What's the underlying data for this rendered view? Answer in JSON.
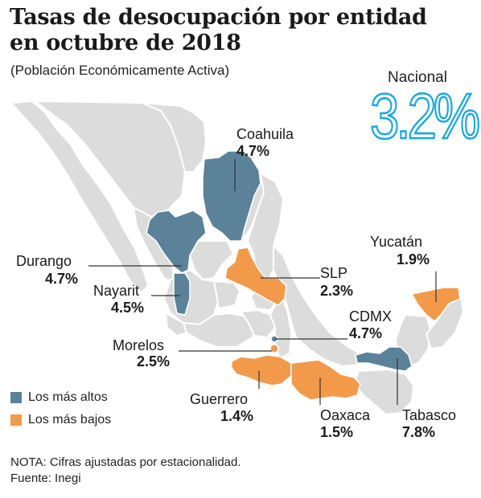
{
  "title": "Tasas de desocupación por entidad en octubre de 2018",
  "subtitle": "(Población Económicamente Activa)",
  "national": {
    "label": "Nacional",
    "value": "3.2%"
  },
  "colors": {
    "high": "#5b8299",
    "low": "#f39a4a",
    "base": "#dcdcdc",
    "accent": "#1aa7dd"
  },
  "states": [
    {
      "name": "Coahuila",
      "value": "4.7%",
      "group": "high"
    },
    {
      "name": "Durango",
      "value": "4.7%",
      "group": "high"
    },
    {
      "name": "Nayarit",
      "value": "4.5%",
      "group": "high"
    },
    {
      "name": "SLP",
      "value": "2.3%",
      "group": "low"
    },
    {
      "name": "Yucatán",
      "value": "1.9%",
      "group": "low"
    },
    {
      "name": "CDMX",
      "value": "4.7%",
      "group": "high"
    },
    {
      "name": "Morelos",
      "value": "2.5%",
      "group": "low"
    },
    {
      "name": "Guerrero",
      "value": "1.4%",
      "group": "low"
    },
    {
      "name": "Oaxaca",
      "value": "1.5%",
      "group": "low"
    },
    {
      "name": "Tabasco",
      "value": "7.8%",
      "group": "high"
    }
  ],
  "legend": {
    "high": "Los más altos",
    "low": "Los más bajos"
  },
  "note": "NOTA: Cifras ajustadas por estacionalidad.",
  "source": "Fuente: Inegi"
}
